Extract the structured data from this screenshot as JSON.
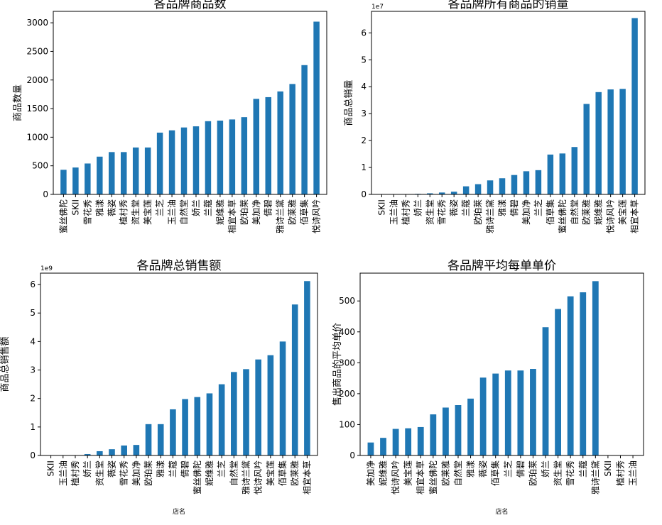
{
  "charts": [
    {
      "title": "各品牌商品数",
      "ylabel": "商品数量",
      "xlabel": "",
      "multiplier": "",
      "ylim": [
        0,
        3200
      ],
      "yticks": [
        0,
        500,
        1000,
        1500,
        2000,
        2500,
        3000
      ],
      "ytick_labels": [
        "0",
        "500",
        "1000",
        "1500",
        "2000",
        "2500",
        "3000"
      ],
      "categories": [
        "蜜丝佛陀",
        "SKII",
        "雪花秀",
        "雅漾",
        "薇姿",
        "植村秀",
        "资生堂",
        "美宝莲",
        "兰芝",
        "玉兰油",
        "自然堂",
        "娇兰",
        "兰蔻",
        "妮维雅",
        "相宜本草",
        "欧珀莱",
        "美加净",
        "倩碧",
        "雅诗兰黛",
        "欧莱雅",
        "佰草集",
        "悦诗风吟"
      ],
      "values": [
        430,
        470,
        540,
        660,
        740,
        740,
        820,
        820,
        1080,
        1120,
        1170,
        1190,
        1280,
        1290,
        1310,
        1350,
        1670,
        1700,
        1800,
        1930,
        2260,
        3020
      ]
    },
    {
      "title": "各品牌所有商品的销量",
      "ylabel": "商品总销量",
      "xlabel": "",
      "multiplier": "1e7",
      "ylim": [
        0,
        6.8
      ],
      "yticks": [
        0,
        1,
        2,
        3,
        4,
        5,
        6
      ],
      "ytick_labels": [
        "0",
        "1",
        "2",
        "3",
        "4",
        "5",
        "6"
      ],
      "categories": [
        "SKII",
        "玉兰油",
        "植村秀",
        "娇兰",
        "资生堂",
        "雪花秀",
        "薇姿",
        "兰蔻",
        "欧珀莱",
        "雅诗兰黛",
        "雅漾",
        "倩碧",
        "美加净",
        "兰芝",
        "佰草集",
        "蜜丝佛陀",
        "自然堂",
        "欧莱雅",
        "妮维雅",
        "悦诗风吟",
        "美宝莲",
        "相宜本草"
      ],
      "values": [
        0.0,
        0.0,
        0.01,
        0.02,
        0.04,
        0.07,
        0.1,
        0.3,
        0.38,
        0.52,
        0.6,
        0.72,
        0.86,
        0.9,
        1.48,
        1.52,
        1.76,
        3.36,
        3.8,
        3.9,
        3.92,
        6.55
      ]
    },
    {
      "title": "各品牌总销售额",
      "ylabel": "商品总销售额",
      "xlabel": "店名",
      "multiplier": "1e9",
      "ylim": [
        0,
        6.4
      ],
      "yticks": [
        0,
        1,
        2,
        3,
        4,
        5,
        6
      ],
      "ytick_labels": [
        "0",
        "1",
        "2",
        "3",
        "4",
        "5",
        "6"
      ],
      "categories": [
        "SKII",
        "玉兰油",
        "植村秀",
        "娇兰",
        "资生堂",
        "薇姿",
        "雪花秀",
        "美加净",
        "欧珀莱",
        "雅漾",
        "兰蔻",
        "倩碧",
        "蜜丝佛陀",
        "妮维雅",
        "兰芝",
        "自然堂",
        "雅诗兰黛",
        "悦诗风吟",
        "美宝莲",
        "佰草集",
        "欧莱雅",
        "相宜本草"
      ],
      "values": [
        0.0,
        0.0,
        0.0,
        0.05,
        0.15,
        0.22,
        0.35,
        0.37,
        1.1,
        1.1,
        1.62,
        1.98,
        2.05,
        2.18,
        2.5,
        2.93,
        3.03,
        3.37,
        3.52,
        4.0,
        5.3,
        6.12
      ]
    },
    {
      "title": "各品牌平均每单单价",
      "ylabel": "售出商品的平均单价",
      "xlabel": "店名",
      "multiplier": "",
      "ylim": [
        0,
        590
      ],
      "yticks": [
        0,
        100,
        200,
        300,
        400,
        500
      ],
      "ytick_labels": [
        "0",
        "100",
        "200",
        "300",
        "400",
        "500"
      ],
      "categories": [
        "美加净",
        "妮维雅",
        "悦诗风吟",
        "美宝莲",
        "相宜本草",
        "蜜丝佛陀",
        "欧莱雅",
        "自然堂",
        "雅漾",
        "薇姿",
        "佰草集",
        "兰芝",
        "倩碧",
        "欧珀莱",
        "娇兰",
        "资生堂",
        "雪花秀",
        "兰蔻",
        "雅诗兰黛",
        "SKII",
        "植村秀",
        "玉兰油"
      ],
      "values": [
        42,
        57,
        86,
        88,
        92,
        133,
        155,
        163,
        184,
        252,
        265,
        275,
        275,
        280,
        415,
        474,
        515,
        528,
        564,
        0,
        0,
        0
      ]
    }
  ],
  "style": {
    "bar_color": "#1f77b4"
  }
}
